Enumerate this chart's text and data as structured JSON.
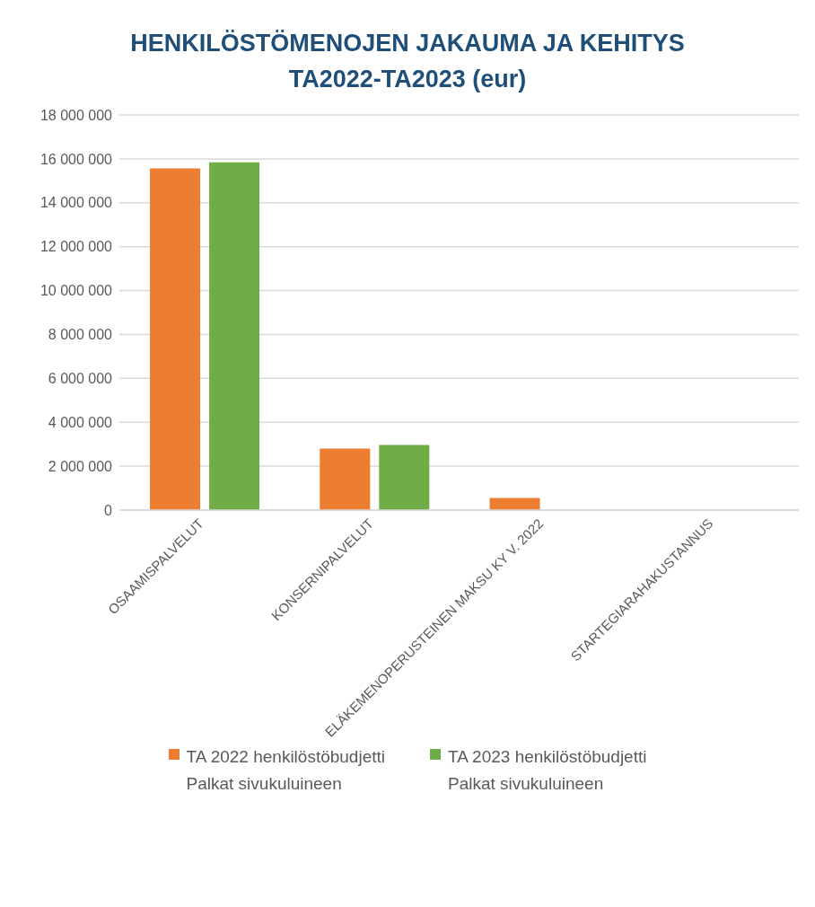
{
  "chart_data": {
    "type": "bar",
    "title": "HENKILÖSTÖMENOJEN JAKAUMA JA KEHITYS\nTA2022-TA2023  (eur)",
    "categories": [
      "OSAAMISPALVELUT",
      "KONSERNIPALVELUT",
      "ELÄKEMENOPERUSTEINEN MAKSU KY V. 2022",
      "STARTEGIARAHAKUSTANNUS"
    ],
    "series": [
      {
        "name": "TA 2022 henkilöstöbudjetti\nPalkat sivukuluineen",
        "color": "#ed7d31",
        "values": [
          15570000,
          2800000,
          550000,
          0
        ]
      },
      {
        "name": "TA 2023 henkilöstöbudjetti\nPalkat sivukuluineen",
        "color": "#70ad47",
        "values": [
          15840000,
          2970000,
          0,
          0
        ]
      }
    ],
    "ylim": [
      0,
      18000000
    ],
    "yticks": [
      0,
      2000000,
      4000000,
      6000000,
      8000000,
      10000000,
      12000000,
      14000000,
      16000000,
      18000000
    ],
    "grid": "y",
    "legend": "bottom"
  }
}
